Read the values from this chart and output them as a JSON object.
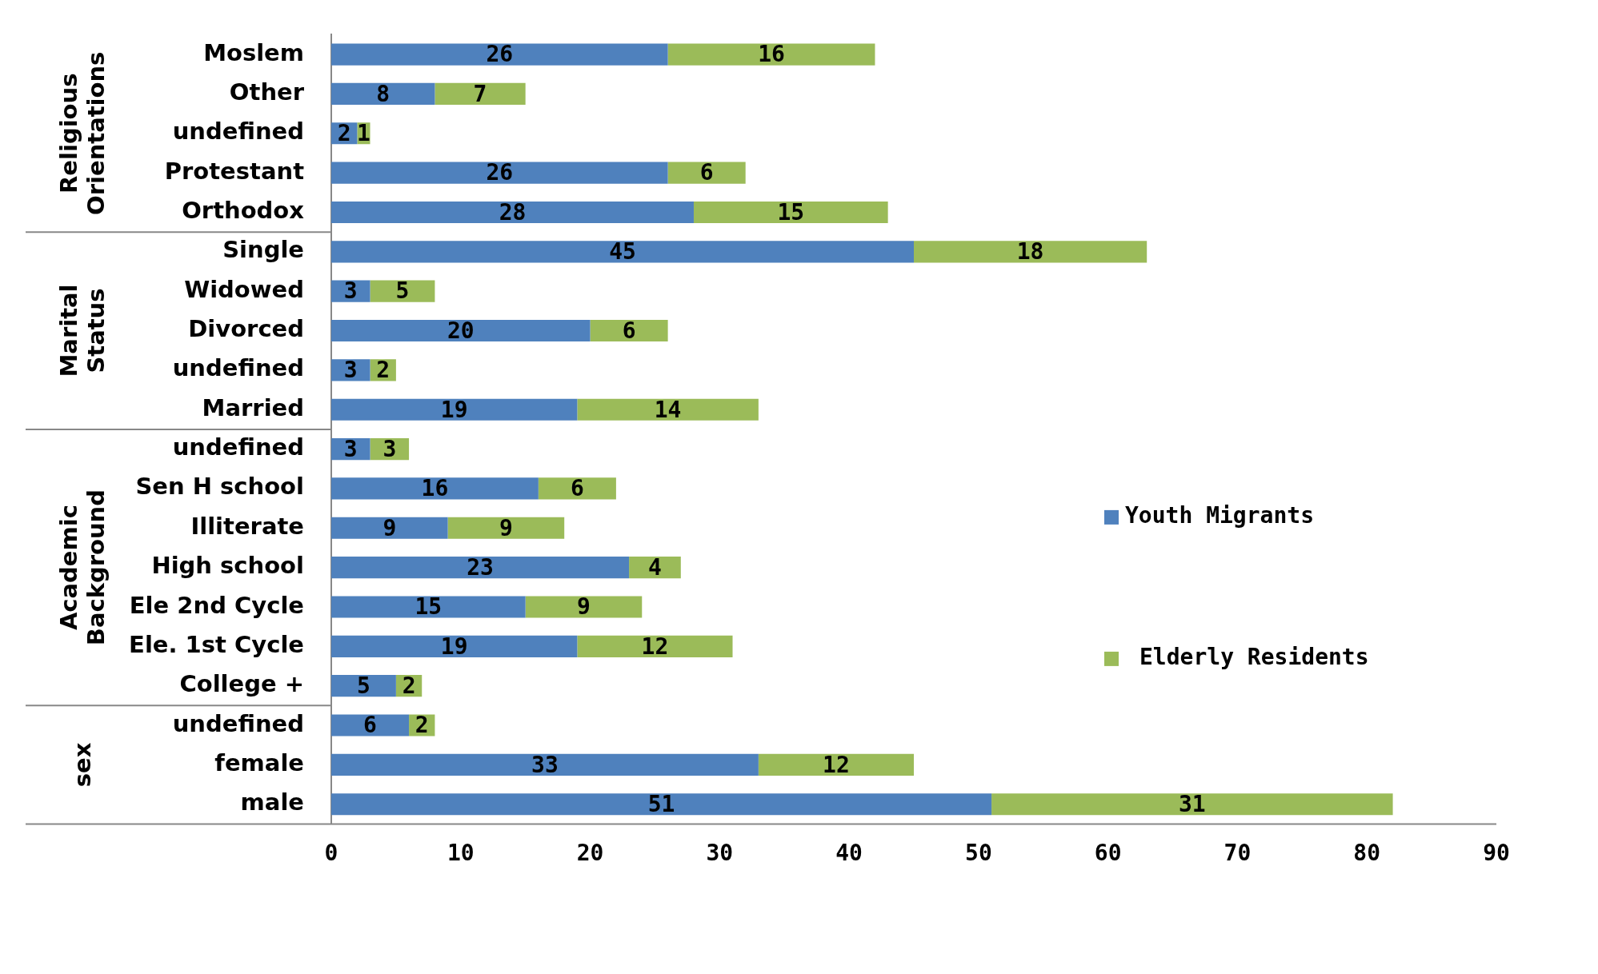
{
  "chart_data": {
    "type": "bar",
    "orientation": "horizontal",
    "stacked": true,
    "data_labels": true,
    "grid": false,
    "legend": "right",
    "categories": [
      "Moslem",
      "Other",
      "undefined",
      "Protestant",
      "Orthodox",
      "Single",
      "Widowed",
      "Divorced",
      "undefined",
      "Married",
      "undefined",
      "Sen H school",
      "Illiterate",
      "High school",
      "Ele 2nd Cycle",
      "Ele. 1st Cycle",
      "College +",
      "undefined",
      "female",
      "male"
    ],
    "series": [
      {
        "name": "Youth Migrants",
        "color": "#4f81bd",
        "values": [
          26,
          8,
          2,
          26,
          28,
          45,
          3,
          20,
          3,
          19,
          3,
          16,
          9,
          23,
          15,
          19,
          5,
          6,
          33,
          51
        ]
      },
      {
        "name": "Elderly Residents",
        "color": "#9bbb59",
        "values": [
          16,
          7,
          1,
          6,
          15,
          18,
          5,
          6,
          2,
          14,
          3,
          6,
          9,
          4,
          9,
          12,
          2,
          2,
          12,
          31
        ]
      }
    ],
    "xlim": [
      0,
      90
    ],
    "xticks": [
      0,
      10,
      20,
      30,
      40,
      50,
      60,
      70,
      80,
      90
    ],
    "annotations": [
      "Religious Orientations",
      "Marital Status",
      "Academic Background",
      "sex"
    ]
  }
}
